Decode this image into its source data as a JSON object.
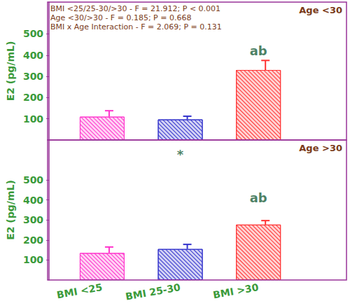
{
  "chart_data": [
    {
      "type": "bar",
      "title": "Age <30",
      "annotations": [
        "BMI <25/25-30/>30 - F = 21.912; P < 0.001",
        "Age <30/>30 - F = 0.185; P = 0.668",
        "BMI x Age Interaction - F = 2.069; P = 0.131"
      ],
      "categories": [
        "BMI <25",
        "BMI 25-30",
        "BMI >30"
      ],
      "values": [
        110,
        97,
        330
      ],
      "errors": [
        28,
        15,
        45
      ],
      "colors": [
        "#ff33cc",
        "#3333cc",
        "#ff3333"
      ],
      "ylabel": "E2 (pg/mL)",
      "ylim": [
        0,
        650
      ],
      "yticks": [
        100,
        200,
        300,
        400,
        500
      ],
      "tick_labels": "y",
      "bar_annotations": [
        {
          "text": "ab",
          "category": "BMI >30",
          "y": 420
        }
      ]
    },
    {
      "type": "bar",
      "title": "Age >30",
      "categories": [
        "BMI <25",
        "BMI 25-30",
        "BMI >30"
      ],
      "values": [
        135,
        155,
        277
      ],
      "errors": [
        30,
        23,
        20
      ],
      "colors": [
        "#ff33cc",
        "#3333cc",
        "#ff3333"
      ],
      "ylabel": "E2 (pg/mL)",
      "ylim": [
        0,
        700
      ],
      "yticks": [
        100,
        200,
        300,
        400,
        500
      ],
      "bar_annotations": [
        {
          "text": "*",
          "category": "BMI 25-30",
          "y": 630
        },
        {
          "text": "ab",
          "category": "BMI >30",
          "y": 410
        }
      ]
    }
  ]
}
